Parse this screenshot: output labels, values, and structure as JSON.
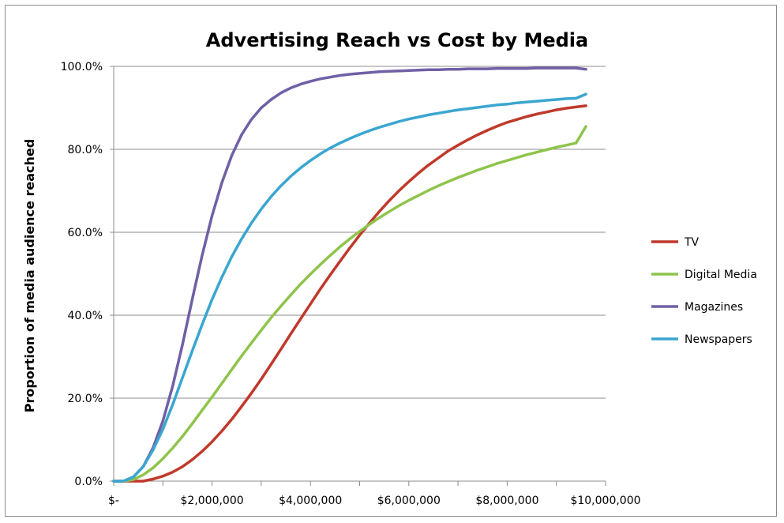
{
  "chart_data": {
    "type": "line",
    "title": "Advertising Reach vs Cost by Media",
    "xlabel": "",
    "ylabel": "Proportion of media audience reached",
    "xlim": [
      0,
      10000000
    ],
    "ylim": [
      0,
      1
    ],
    "x_ticks": [
      {
        "value": 0,
        "label": "$-"
      },
      {
        "value": 2000000,
        "label": "$2,000,000"
      },
      {
        "value": 4000000,
        "label": "$4,000,000"
      },
      {
        "value": 6000000,
        "label": "$6,000,000"
      },
      {
        "value": 8000000,
        "label": "$8,000,000"
      },
      {
        "value": 10000000,
        "label": "$10,000,000"
      }
    ],
    "y_ticks": [
      {
        "value": 0.0,
        "label": "0.0%"
      },
      {
        "value": 0.2,
        "label": "20.0%"
      },
      {
        "value": 0.4,
        "label": "40.0%"
      },
      {
        "value": 0.6,
        "label": "60.0%"
      },
      {
        "value": 0.8,
        "label": "80.0%"
      },
      {
        "value": 1.0,
        "label": "100.0%"
      }
    ],
    "grid": true,
    "legend_position": "right",
    "x": [
      0,
      200000,
      400000,
      600000,
      800000,
      1000000,
      1200000,
      1400000,
      1600000,
      1800000,
      2000000,
      2200000,
      2400000,
      2600000,
      2800000,
      3000000,
      3200000,
      3400000,
      3600000,
      3800000,
      4000000,
      4200000,
      4400000,
      4600000,
      4800000,
      5000000,
      5200000,
      5400000,
      5600000,
      5800000,
      6000000,
      6200000,
      6400000,
      6600000,
      6800000,
      7000000,
      7200000,
      7400000,
      7600000,
      7800000,
      8000000,
      8200000,
      8400000,
      8600000,
      8800000,
      9000000,
      9200000,
      9400000,
      9600000
    ],
    "series": [
      {
        "name": "TV",
        "color": "#c0392b",
        "values": [
          0.0,
          0.0,
          0.0,
          0.0,
          0.005,
          0.012,
          0.022,
          0.035,
          0.052,
          0.072,
          0.095,
          0.121,
          0.149,
          0.18,
          0.212,
          0.246,
          0.282,
          0.318,
          0.355,
          0.391,
          0.427,
          0.463,
          0.497,
          0.53,
          0.562,
          0.593,
          0.622,
          0.65,
          0.676,
          0.7,
          0.722,
          0.743,
          0.762,
          0.779,
          0.796,
          0.81,
          0.823,
          0.835,
          0.846,
          0.856,
          0.865,
          0.872,
          0.879,
          0.885,
          0.89,
          0.895,
          0.899,
          0.902,
          0.905
        ]
      },
      {
        "name": "Digital Media",
        "color": "#8fc44c",
        "values": [
          0.0,
          0.0,
          0.004,
          0.015,
          0.032,
          0.054,
          0.08,
          0.108,
          0.139,
          0.171,
          0.203,
          0.236,
          0.269,
          0.302,
          0.333,
          0.364,
          0.394,
          0.422,
          0.449,
          0.475,
          0.499,
          0.522,
          0.544,
          0.565,
          0.584,
          0.602,
          0.619,
          0.635,
          0.65,
          0.664,
          0.677,
          0.689,
          0.701,
          0.712,
          0.722,
          0.732,
          0.741,
          0.75,
          0.758,
          0.766,
          0.773,
          0.78,
          0.787,
          0.793,
          0.799,
          0.805,
          0.81,
          0.815,
          0.855
        ]
      },
      {
        "name": "Magazines",
        "color": "#7060a5",
        "values": [
          0.0,
          0.0,
          0.01,
          0.035,
          0.08,
          0.145,
          0.23,
          0.33,
          0.44,
          0.545,
          0.64,
          0.72,
          0.785,
          0.835,
          0.872,
          0.9,
          0.92,
          0.936,
          0.948,
          0.957,
          0.964,
          0.97,
          0.974,
          0.978,
          0.981,
          0.983,
          0.985,
          0.987,
          0.988,
          0.989,
          0.99,
          0.991,
          0.992,
          0.992,
          0.993,
          0.993,
          0.994,
          0.994,
          0.994,
          0.995,
          0.995,
          0.995,
          0.995,
          0.996,
          0.996,
          0.996,
          0.996,
          0.996,
          0.993
        ]
      },
      {
        "name": "Newspapers",
        "color": "#3aa6d0",
        "values": [
          0.0,
          0.0,
          0.01,
          0.035,
          0.075,
          0.125,
          0.185,
          0.25,
          0.315,
          0.378,
          0.438,
          0.492,
          0.541,
          0.584,
          0.622,
          0.656,
          0.686,
          0.712,
          0.735,
          0.755,
          0.773,
          0.789,
          0.803,
          0.815,
          0.826,
          0.836,
          0.845,
          0.853,
          0.86,
          0.867,
          0.873,
          0.878,
          0.883,
          0.887,
          0.891,
          0.895,
          0.898,
          0.901,
          0.904,
          0.907,
          0.909,
          0.912,
          0.914,
          0.916,
          0.918,
          0.92,
          0.922,
          0.923,
          0.933
        ]
      }
    ]
  }
}
